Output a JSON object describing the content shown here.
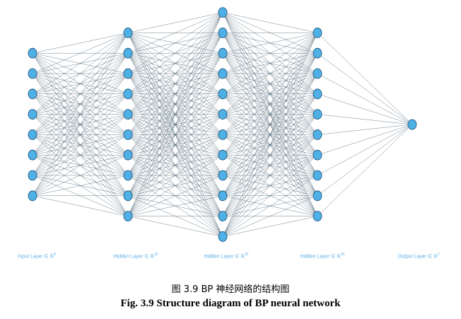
{
  "network": {
    "layers": [
      {
        "label": "Input Layer ∈ ℝ",
        "dim": "8",
        "nodes": 8
      },
      {
        "label": "Hidden Layer ∈ ℝ",
        "dim": "10",
        "nodes": 10
      },
      {
        "label": "Hidden Layer ∈ ℝ",
        "dim": "12",
        "nodes": 12
      },
      {
        "label": "Hidden Layer ∈ ℝ",
        "dim": "10",
        "nodes": 10
      },
      {
        "label": "Output Layer ∈ ℝ",
        "dim": "1",
        "nodes": 1
      }
    ],
    "node_fill": "#4fb0e6",
    "node_stroke": "#1d4e75",
    "edge_color": "#4a6373"
  },
  "caption": {
    "cn": "图 3.9  BP 神经网络的结构图",
    "en": "Fig. 3.9 Structure diagram of BP neural network"
  }
}
